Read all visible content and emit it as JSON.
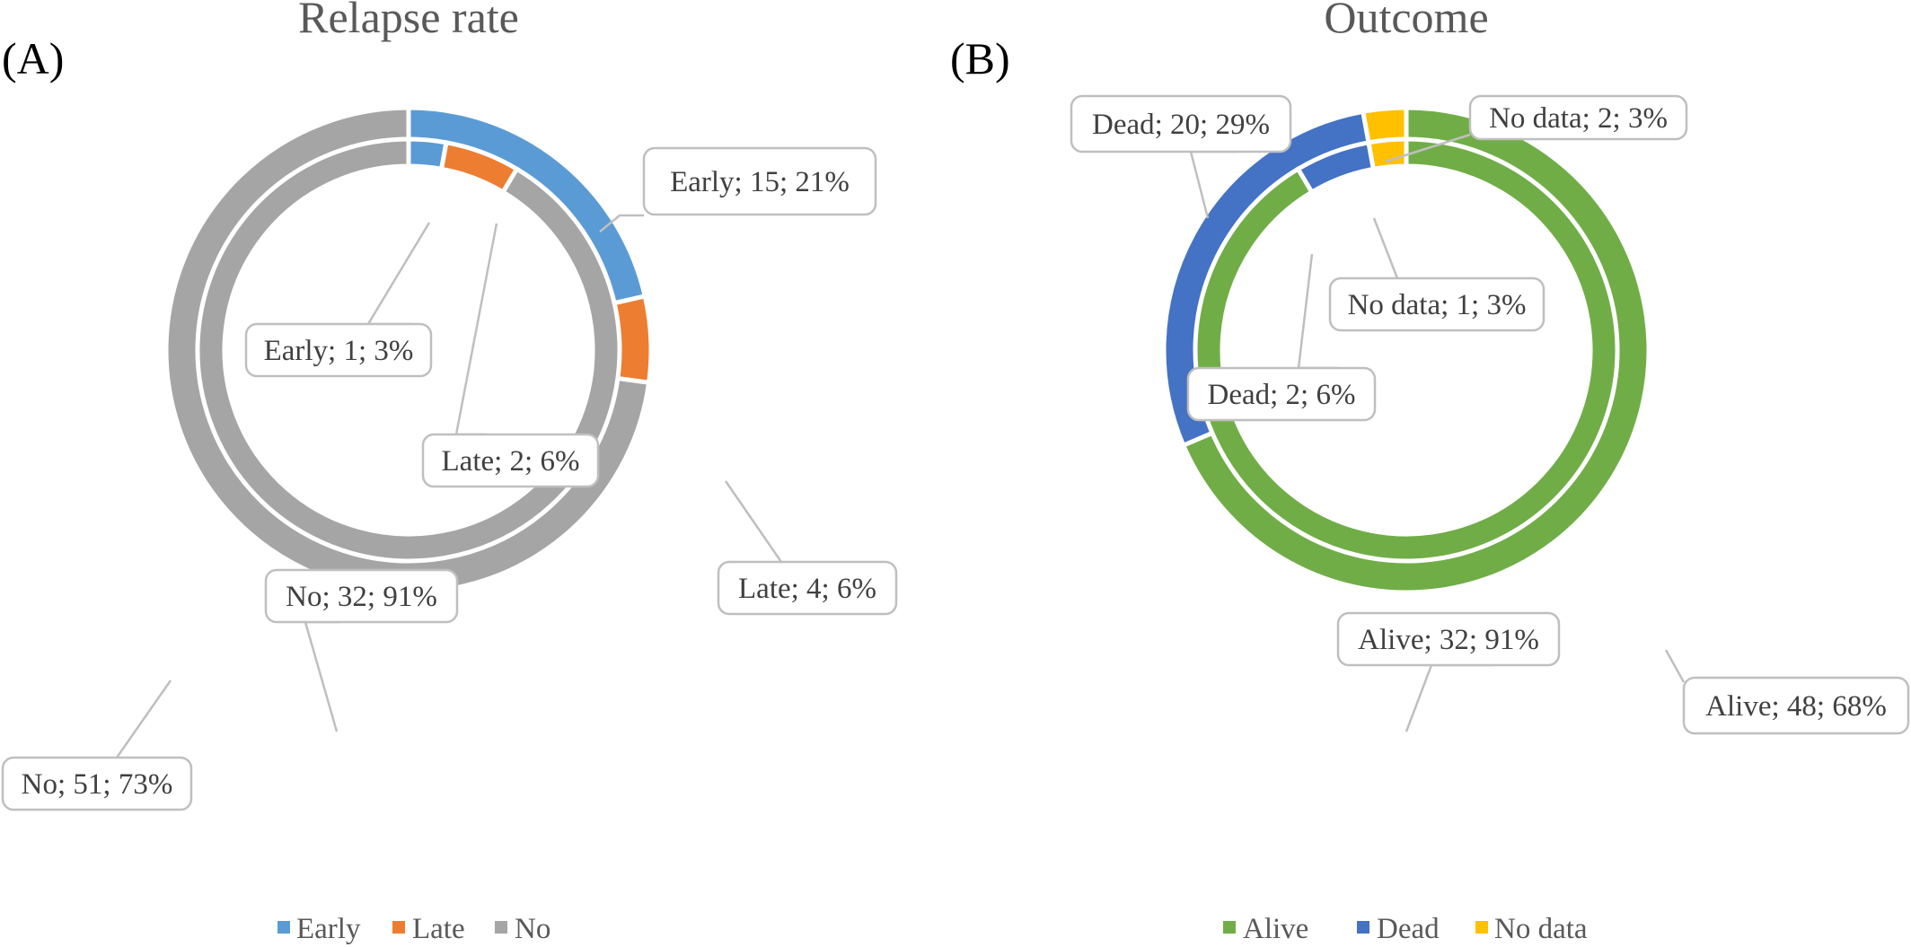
{
  "panels": [
    {
      "panel_label": "(A)",
      "chart_data": {
        "type": "doughnut",
        "title": "Relapse rate",
        "legend": {
          "position": "bottom",
          "entries": [
            "Early",
            "Late",
            "No"
          ]
        },
        "colors": {
          "Early": "#5B9BD5",
          "Late": "#ED7D31",
          "No": "#A5A5A5"
        },
        "categories": [
          "Early",
          "Late",
          "No"
        ],
        "series": [
          {
            "ring": "outer",
            "values": [
              15,
              4,
              51
            ],
            "percents": [
              21,
              6,
              73
            ],
            "labels": [
              "Early; 15; 21%",
              "Late; 4; 6%",
              "No; 51; 73%"
            ]
          },
          {
            "ring": "inner",
            "values": [
              1,
              2,
              32
            ],
            "percents": [
              3,
              6,
              91
            ],
            "labels": [
              "Early; 1; 3%",
              "Late; 2; 6%",
              "No; 32; 91%"
            ]
          }
        ]
      }
    },
    {
      "panel_label": "(B)",
      "chart_data": {
        "type": "doughnut",
        "title": "Outcome",
        "legend": {
          "position": "bottom",
          "entries": [
            "Alive",
            "Dead",
            "No data"
          ]
        },
        "colors": {
          "Alive": "#70AD47",
          "Dead": "#4472C4",
          "No data": "#FFC000"
        },
        "categories": [
          "Alive",
          "Dead",
          "No data"
        ],
        "series": [
          {
            "ring": "outer",
            "values": [
              48,
              20,
              2
            ],
            "percents": [
              68,
              29,
              3
            ],
            "labels": [
              "Alive; 48; 68%",
              "Dead; 20; 29%",
              "No data; 2; 3%"
            ]
          },
          {
            "ring": "inner",
            "values": [
              32,
              2,
              1
            ],
            "percents": [
              91,
              6,
              3
            ],
            "labels": [
              "Alive; 32; 91%",
              "Dead; 2; 6%",
              "No data; 1; 3%"
            ]
          }
        ]
      }
    }
  ]
}
